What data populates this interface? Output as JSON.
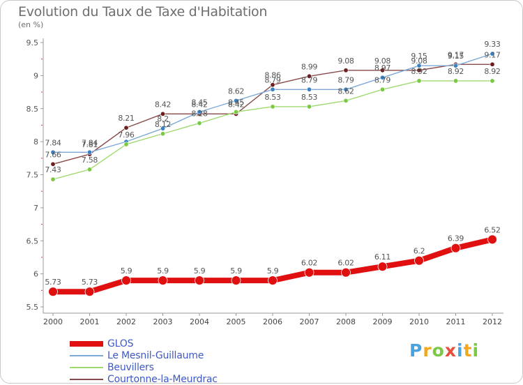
{
  "chart_data": {
    "type": "line",
    "title": "Evolution du Taux de Taxe d'Habitation",
    "subtitle": "(en %)",
    "x": [
      "2000",
      "2001",
      "2002",
      "2003",
      "2004",
      "2005",
      "2006",
      "2007",
      "2008",
      "2009",
      "2010",
      "2011",
      "2012"
    ],
    "ylim": [
      5.5,
      9.5
    ],
    "yticks": [
      "5.5",
      "6",
      "6.5",
      "7",
      "7.5",
      "8",
      "8.5",
      "9",
      "9.5"
    ],
    "grid": false,
    "legend_placement": "bottom-left",
    "series": [
      {
        "name": "GLOS",
        "color": "#e01010",
        "values": [
          5.73,
          5.73,
          5.9,
          5.9,
          5.9,
          5.9,
          5.9,
          6.02,
          6.02,
          6.11,
          6.2,
          6.39,
          6.52
        ],
        "labels": [
          "5.73",
          "5.73",
          "5.9",
          "5.9",
          "5.9",
          "5.9",
          "5.9",
          "6.02",
          "6.02",
          "6.11",
          "6.2",
          "6.39",
          "6.52"
        ]
      },
      {
        "name": "Le Mesnil-Guillaume",
        "color": "#7da9d6",
        "marker": "#3b82c4",
        "values": [
          7.84,
          7.84,
          8.0,
          8.2,
          8.45,
          8.62,
          8.79,
          8.79,
          8.79,
          8.97,
          9.15,
          9.15,
          9.33
        ],
        "labels": [
          "7.84",
          "7.84",
          "",
          "8.2",
          "8.45",
          "8.62",
          "8.79",
          "8.79",
          "8.79",
          "8.97",
          "9.15",
          "9.15",
          "9.33"
        ]
      },
      {
        "name": "Beuvillers",
        "color": "#9ed96e",
        "marker": "#7ac943",
        "values": [
          7.43,
          7.58,
          7.96,
          8.12,
          8.28,
          8.45,
          8.53,
          8.53,
          8.62,
          8.79,
          8.92,
          8.92,
          8.92
        ],
        "labels": [
          "7.43",
          "7.58",
          "7.96",
          "8.12",
          "8.28",
          "8.45",
          "8.53",
          "8.53",
          "8.62",
          "8.79",
          "8.92",
          "8.92",
          "8.92"
        ]
      },
      {
        "name": "Courtonne-la-Meurdrac",
        "color": "#8a4a4a",
        "marker": "#6b1f1f",
        "values": [
          7.66,
          7.81,
          8.21,
          8.42,
          8.42,
          8.42,
          8.86,
          8.99,
          9.08,
          9.08,
          9.08,
          9.17,
          9.17
        ],
        "labels": [
          "7.66",
          "7.81",
          "8.21",
          "8.42",
          "8.42",
          "8.42",
          "8.86",
          "8.99",
          "9.08",
          "9.08",
          "9.08",
          "9.17",
          "9.17"
        ]
      }
    ]
  },
  "logo": {
    "letters": [
      "P",
      "r",
      "o",
      "x",
      "i",
      "t",
      "i"
    ],
    "colors": [
      "#4aa3df",
      "#f2a81d",
      "#7ac943",
      "#e84e3c",
      "#4aa3df",
      "#f2a81d",
      "#7ac943"
    ]
  }
}
